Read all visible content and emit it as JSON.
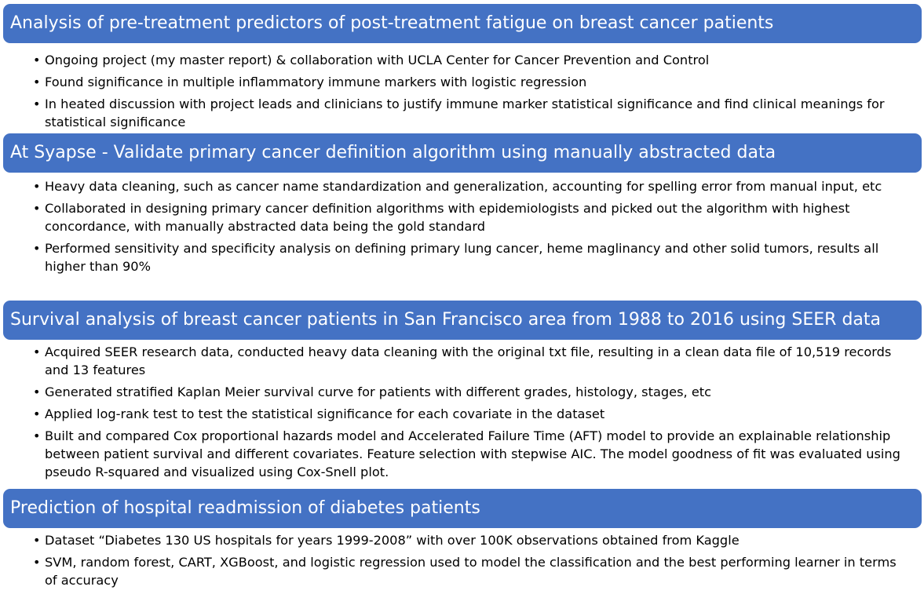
{
  "sections": [
    {
      "title": "Analysis of pre-treatment predictors of post-treatment fatigue on breast cancer patients",
      "bullets": [
        "Ongoing project (my master report) & collaboration with UCLA Center for Cancer Prevention and Control",
        "Found significance in multiple inflammatory immune markers with logistic regression",
        "In heated discussion with project leads and clinicians to justify immune marker statistical significance and find clinical meanings for statistical significance"
      ]
    },
    {
      "title": "At Syapse - Validate primary cancer definition algorithm using manually abstracted data",
      "bullets": [
        "Heavy data cleaning, such as cancer name standardization and generalization, accounting for spelling error from manual input, etc",
        "Collaborated in designing primary cancer definition algorithms with epidemiologists and picked out the algorithm with highest concordance, with manually abstracted data being the gold standard",
        "Performed sensitivity and specificity analysis on defining primary lung cancer, heme maglinancy and other solid tumors, results all higher than 90%"
      ]
    },
    {
      "title": "Survival analysis of breast cancer patients in San Francisco area from 1988 to 2016 using SEER data",
      "bullets": [
        "Acquired SEER research data, conducted heavy data cleaning with the original txt file, resulting in a clean data file of 10,519 records and 13 features",
        "Generated stratified Kaplan Meier survival curve for patients with different grades, histology, stages, etc",
        "Applied log-rank test to test the statistical significance for each covariate in the dataset",
        "Built and compared Cox proportional hazards model and Accelerated Failure Time (AFT) model to provide an explainable relationship between patient survival and different covariates. Feature selection with stepwise AIC. The model goodness of fit was evaluated using pseudo R-squared and visualized using Cox-Snell plot."
      ]
    },
    {
      "title": "Prediction of hospital readmission of diabetes patients",
      "bullets": [
        "Dataset “Diabetes 130 US hospitals for years 1999-2008” with over 100K observations obtained from Kaggle",
        "SVM, random forest, CART, XGBoost, and logistic regression used to model the classification and the best performing learner in terms of accuracy"
      ]
    }
  ],
  "colors": {
    "header_bg": "#4472c4",
    "header_text": "#ffffff",
    "body_text": "#000000"
  },
  "bullet_symbol": "•"
}
